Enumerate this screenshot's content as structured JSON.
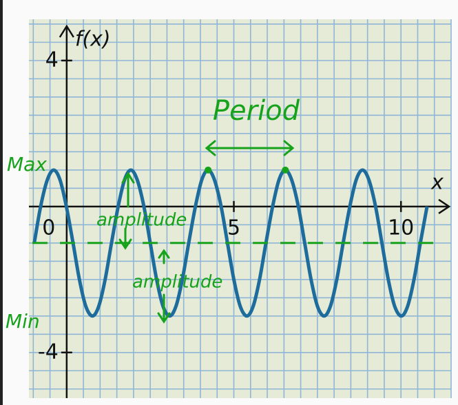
{
  "chart_data": {
    "type": "line",
    "x_label": "x",
    "y_label": "f(x)",
    "x": [
      -0.97,
      -0.78,
      -0.58,
      -0.39,
      -0.2,
      -0.01,
      0.19,
      0.38,
      0.57,
      0.77,
      0.96,
      1.15,
      1.34,
      1.54,
      1.73,
      1.92,
      2.11,
      2.31,
      2.5,
      2.69,
      2.88,
      3.08,
      3.27,
      3.46,
      3.65,
      3.85,
      4.04,
      4.23,
      4.42,
      4.62,
      4.81,
      5.0,
      5.19,
      5.39,
      5.58,
      5.77,
      5.96,
      6.16,
      6.35,
      6.54,
      6.73,
      6.93,
      7.12,
      7.31,
      7.5,
      7.7,
      7.89,
      8.08,
      8.27,
      8.47,
      8.66,
      8.85,
      9.04,
      9.24,
      9.43,
      9.62,
      9.81,
      10.01,
      10.2,
      10.39,
      10.58,
      10.78
    ],
    "series": [
      {
        "color": "#1d6c9c",
        "values": [
          -1,
          0,
          0.73,
          1,
          0.73,
          0,
          -1,
          -2,
          -2.73,
          -3,
          -2.73,
          -2,
          -1,
          0,
          0.73,
          1,
          0.73,
          0,
          -1,
          -2,
          -2.73,
          -3,
          -2.73,
          -2,
          -1,
          0,
          0.73,
          1,
          0.73,
          0,
          -1,
          -2,
          -2.73,
          -3,
          -2.73,
          -2,
          -1,
          0,
          0.73,
          1,
          0.73,
          0,
          -1,
          -2,
          -2.73,
          -3,
          -2.73,
          -2,
          -1,
          0,
          0.73,
          1,
          0.73,
          0,
          -1,
          -2,
          -2.73,
          -3,
          -2.73,
          -2,
          -1,
          0
        ]
      }
    ],
    "xlim": [
      -1.13,
      11.5
    ],
    "ylim": [
      -5.25,
      5.13
    ],
    "xticks": [
      0,
      5,
      10
    ],
    "yticks": [
      -4,
      4
    ],
    "grid": true,
    "grid_step": 0.5,
    "midline_y": -1,
    "annotation_color": "#17a21c",
    "annotations": [
      "Period",
      "Max",
      "Min",
      "amplitude",
      "amplitude"
    ]
  }
}
